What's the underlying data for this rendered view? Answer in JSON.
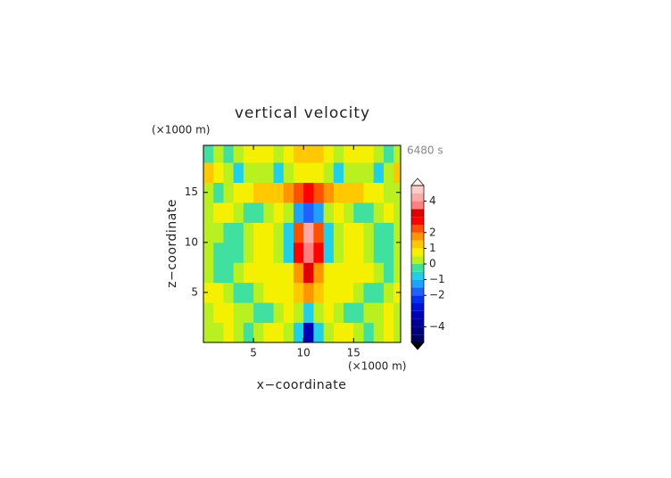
{
  "chart_data": {
    "type": "contour",
    "title": "vertical velocity",
    "time_label": "6480 s",
    "x_label": "x−coordinate",
    "y_label": "z−coordinate",
    "x_unit": "(×1000 m)",
    "y_unit": "(×1000 m)",
    "xlim": [
      0,
      19.7
    ],
    "ylim": [
      0,
      19.7
    ],
    "xticks": [
      5,
      10,
      15
    ],
    "yticks": [
      5,
      10,
      15
    ],
    "x": [
      0.5,
      1.5,
      2.5,
      3.5,
      4.5,
      5.5,
      6.5,
      7.5,
      8.5,
      9.5,
      10.5,
      11.5,
      12.5,
      13.5,
      14.5,
      15.5,
      16.5,
      17.5,
      18.5,
      19.5
    ],
    "z": [
      1,
      3,
      5,
      7,
      9,
      11,
      13,
      15,
      17,
      19
    ],
    "values": [
      [
        0.3,
        0.4,
        0.5,
        0.2,
        -0.3,
        0.3,
        0.6,
        0.5,
        0.4,
        -1.0,
        -3.5,
        -1.0,
        0.4,
        0.5,
        0.6,
        0.3,
        -0.3,
        0.2,
        0.5,
        0.4
      ],
      [
        0.4,
        0.6,
        0.5,
        0.3,
        0.1,
        -0.3,
        -0.2,
        0.2,
        0.6,
        0.3,
        -0.7,
        0.3,
        0.6,
        0.2,
        -0.2,
        -0.3,
        0.1,
        0.3,
        0.6,
        0.4
      ],
      [
        0.6,
        0.5,
        0.3,
        -0.3,
        -0.4,
        0.3,
        0.6,
        0.7,
        0.8,
        1.2,
        1.6,
        1.2,
        0.8,
        0.7,
        0.6,
        0.3,
        -0.4,
        -0.3,
        0.3,
        0.5
      ],
      [
        0.2,
        -0.3,
        -0.2,
        0.3,
        0.6,
        0.5,
        0.6,
        0.7,
        0.6,
        1.6,
        3.1,
        1.6,
        0.6,
        0.7,
        0.6,
        0.5,
        0.6,
        0.3,
        -0.3,
        0.2
      ],
      [
        0.3,
        -0.2,
        -0.4,
        -0.3,
        0.4,
        0.6,
        0.7,
        0.3,
        -0.6,
        2.8,
        3.9,
        2.8,
        -0.6,
        0.3,
        0.7,
        0.6,
        0.4,
        -0.4,
        -0.3,
        0.2
      ],
      [
        0.4,
        0.2,
        -0.4,
        -0.3,
        0.3,
        0.6,
        0.7,
        0.4,
        -0.8,
        2.4,
        4.2,
        2.4,
        -0.8,
        0.4,
        0.7,
        0.6,
        0.3,
        -0.3,
        -0.4,
        0.3
      ],
      [
        0.3,
        0.5,
        0.6,
        0.4,
        -0.2,
        -0.3,
        0.3,
        0.6,
        0.4,
        -1.2,
        -1.6,
        -1.2,
        0.4,
        0.6,
        0.3,
        -0.3,
        -0.2,
        0.4,
        0.6,
        0.3
      ],
      [
        0.2,
        -0.2,
        0.3,
        0.6,
        0.8,
        1.1,
        1.3,
        1.4,
        1.6,
        2.4,
        2.8,
        2.4,
        1.6,
        1.4,
        1.3,
        1.1,
        0.8,
        0.6,
        0.3,
        0.2
      ],
      [
        1.2,
        0.5,
        0.2,
        -0.7,
        0.3,
        0.4,
        0.2,
        -0.6,
        0.4,
        0.6,
        0.7,
        0.6,
        0.4,
        -0.6,
        0.2,
        0.4,
        0.3,
        -0.7,
        0.4,
        1.0
      ],
      [
        -0.2,
        0.3,
        -0.3,
        0.4,
        0.6,
        0.8,
        0.5,
        0.3,
        0.6,
        1.1,
        1.3,
        1.1,
        0.6,
        0.3,
        0.5,
        0.8,
        0.6,
        0.4,
        -0.3,
        0.2
      ]
    ],
    "clim": [
      -5,
      5
    ],
    "levels": [
      -5,
      -4.5,
      -4,
      -3.5,
      -3,
      -2.5,
      -2,
      -1.5,
      -1,
      -0.5,
      0,
      0.5,
      1,
      1.5,
      2,
      2.5,
      3,
      3.5,
      4,
      4.5,
      5
    ],
    "colors": [
      "#000060",
      "#00007a",
      "#000094",
      "#0000b4",
      "#0010d4",
      "#0030f0",
      "#2060ff",
      "#20a0ff",
      "#20d0e8",
      "#40e0a0",
      "#b8f020",
      "#f4f000",
      "#ffc800",
      "#ff9600",
      "#ff5000",
      "#ff0000",
      "#e00000",
      "#ff8080",
      "#ffa8a8",
      "#ffcccc"
    ],
    "under_color": "#000000",
    "over_color": "#fff0f0",
    "colorbar_ticks": [
      4,
      2,
      1,
      0,
      {
        "value": -1,
        "label": "−1"
      },
      {
        "value": -2,
        "label": "−2"
      },
      {
        "value": -4,
        "label": "−4"
      }
    ]
  }
}
